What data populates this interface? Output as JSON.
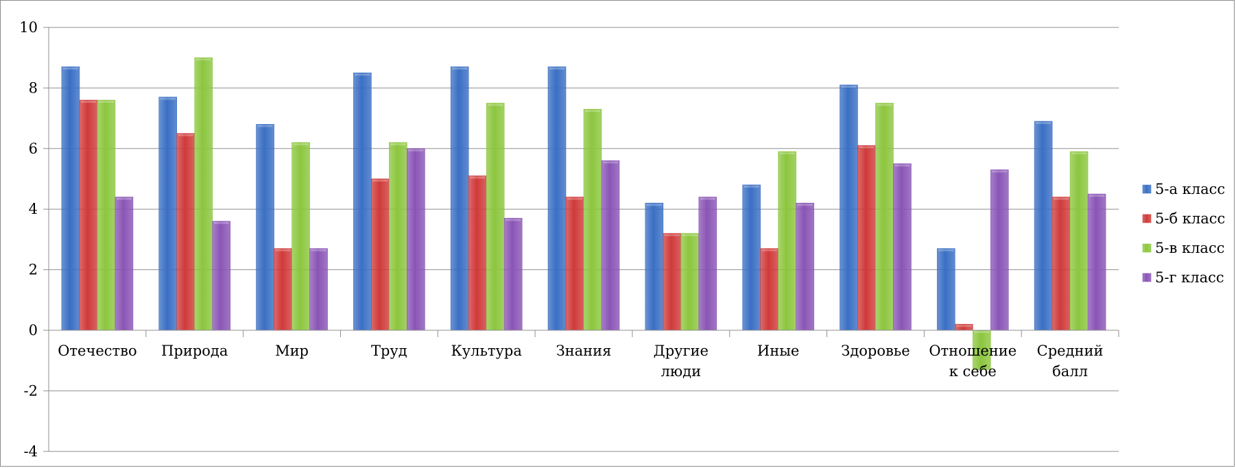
{
  "chart_data": {
    "type": "bar",
    "title": "",
    "xlabel": "",
    "ylabel": "",
    "ylim": [
      -4,
      10
    ],
    "yticks": [
      10,
      8,
      6,
      4,
      2,
      0,
      -2,
      -4
    ],
    "grid": true,
    "legend_position": "right",
    "categories": [
      [
        "Отечество"
      ],
      [
        "Природа"
      ],
      [
        "Мир"
      ],
      [
        "Труд"
      ],
      [
        "Культура"
      ],
      [
        "Знания"
      ],
      [
        "Другие",
        "люди"
      ],
      [
        "Иные"
      ],
      [
        "Здоровье"
      ],
      [
        "Отношение",
        "к себе"
      ],
      [
        "Средний",
        "балл"
      ]
    ],
    "series": [
      {
        "name": "5-а  класс",
        "color": "#3a6fc4",
        "values": [
          8.7,
          7.7,
          6.8,
          8.5,
          8.7,
          8.7,
          4.2,
          4.8,
          8.1,
          2.7,
          6.9
        ]
      },
      {
        "name": "5-б класс",
        "color": "#d03a3a",
        "values": [
          7.6,
          6.5,
          2.7,
          5.0,
          5.1,
          4.4,
          3.2,
          2.7,
          6.1,
          0.2,
          4.4
        ]
      },
      {
        "name": "5-в класс",
        "color": "#8cc63e",
        "values": [
          7.6,
          9.0,
          6.2,
          6.2,
          7.5,
          7.3,
          3.2,
          5.9,
          7.5,
          -1.3,
          5.9
        ]
      },
      {
        "name": "5-г класс",
        "color": "#8a55b6",
        "values": [
          4.4,
          3.6,
          2.7,
          6.0,
          3.7,
          5.6,
          4.4,
          4.2,
          5.5,
          5.3,
          4.5
        ]
      }
    ]
  }
}
